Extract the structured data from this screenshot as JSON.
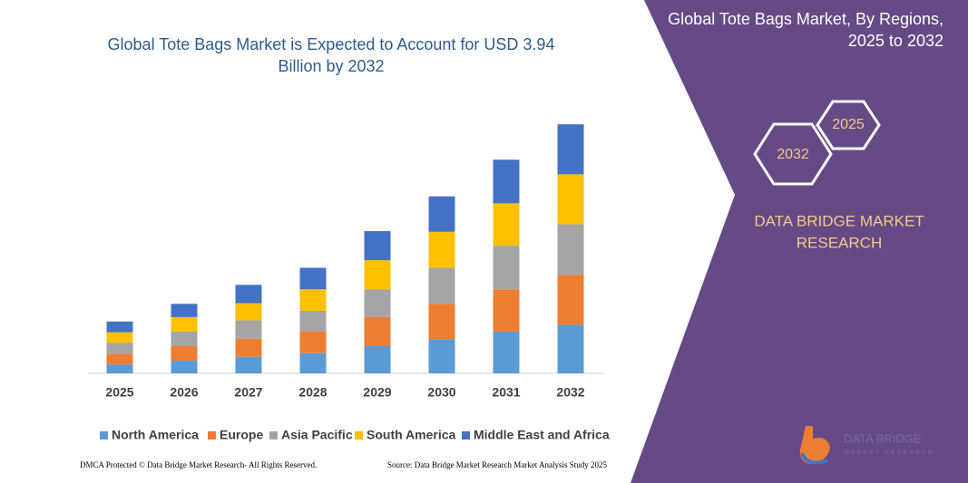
{
  "chart_data": {
    "type": "bar",
    "stacked": true,
    "title": [
      "Global Tote Bags Market is Expected to Account for USD 3.94",
      "Billion by 2032"
    ],
    "categories": [
      "2025",
      "2026",
      "2027",
      "2028",
      "2029",
      "2030",
      "2031",
      "2032"
    ],
    "series": [
      {
        "name": "North America",
        "color": "#5b9bd5",
        "values": [
          0.14,
          0.2,
          0.26,
          0.32,
          0.43,
          0.54,
          0.66,
          0.77
        ]
      },
      {
        "name": "Europe",
        "color": "#ed7d31",
        "values": [
          0.17,
          0.23,
          0.29,
          0.34,
          0.46,
          0.56,
          0.67,
          0.79
        ]
      },
      {
        "name": "Asia Pacific",
        "color": "#a5a5a5",
        "values": [
          0.17,
          0.23,
          0.29,
          0.33,
          0.44,
          0.57,
          0.69,
          0.8
        ]
      },
      {
        "name": "South America",
        "color": "#ffc000",
        "values": [
          0.17,
          0.23,
          0.27,
          0.34,
          0.46,
          0.57,
          0.67,
          0.79
        ]
      },
      {
        "name": "Middle East and Africa",
        "color": "#4472c4",
        "values": [
          0.17,
          0.21,
          0.29,
          0.34,
          0.46,
          0.56,
          0.69,
          0.79
        ]
      }
    ],
    "ylim": [
      0,
      4
    ],
    "legend": "bottom"
  },
  "side_panel": {
    "title": [
      "Global Tote Bags Market, By Regions,",
      "2025 to 2032"
    ],
    "hexagons": [
      "2025",
      "2032"
    ],
    "brand": [
      "DATA BRIDGE MARKET",
      "RESEARCH"
    ],
    "logo": [
      "DATA BRIDGE",
      "MARKET RESEARCH"
    ]
  },
  "footer": {
    "left": "DMCA Protected © Data Bridge Market Research- All Rights Reserved.",
    "right": "Source: Data Bridge Market Research Market Analysis Study 2025"
  }
}
